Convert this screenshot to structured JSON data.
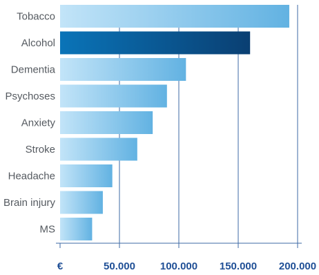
{
  "chart_data": {
    "type": "bar",
    "orientation": "horizontal",
    "categories": [
      "Tobacco",
      "Alcohol",
      "Dementia",
      "Psychoses",
      "Anxiety",
      "Stroke",
      "Headache",
      "Brain injury",
      "MS"
    ],
    "values": [
      193000,
      160000,
      106000,
      90000,
      78000,
      65000,
      44000,
      36000,
      27000
    ],
    "highlighted_category": "Alcohol",
    "x_ticks": [
      0,
      50000,
      100000,
      150000,
      200000
    ],
    "x_tick_labels": [
      "€",
      "50.000",
      "100.000",
      "150.000",
      "200.000"
    ],
    "xlim": [
      0,
      200000
    ],
    "grid": "vertical",
    "title": "",
    "xlabel": "",
    "ylabel": "",
    "colors": {
      "bar_light": "#c2e4f8",
      "bar_dark": "#62b2e2",
      "highlight_light": "#0a74b8",
      "highlight_dark": "#0a3f72",
      "grid": "#3d6aa6",
      "tick_text": "#1f4f96",
      "label_text": "#555a60"
    }
  }
}
